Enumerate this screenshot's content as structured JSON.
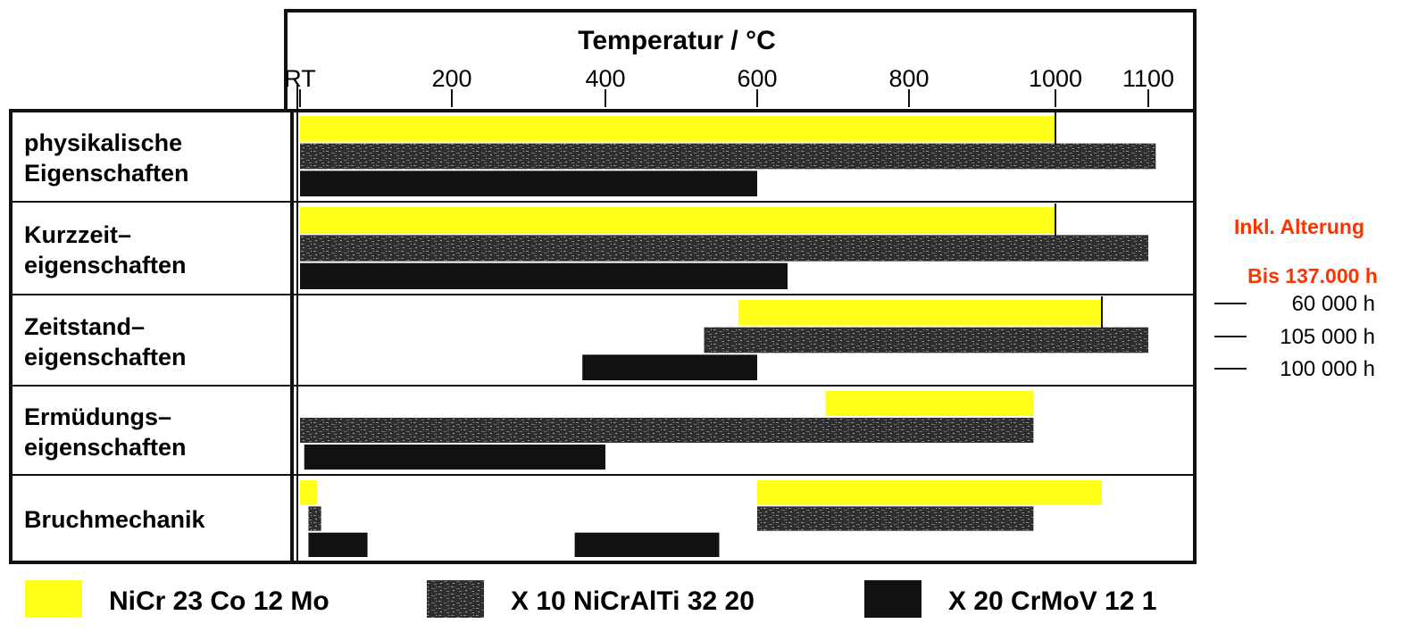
{
  "chart_data": {
    "type": "bar",
    "subtype": "range-bar",
    "xlabel": "Temperatur / °C",
    "tick_labels": [
      "RT",
      "200",
      "400",
      "600",
      "800",
      "1000",
      "1100"
    ],
    "tick_values": [
      20,
      200,
      400,
      600,
      800,
      1000,
      1100
    ],
    "xlim": [
      20,
      1160
    ],
    "categories": [
      [
        "physikalische",
        "Eigenschaften"
      ],
      [
        "Kurzzeit–",
        "eigenschaften"
      ],
      [
        "Zeitstand–",
        "eigenschaften"
      ],
      [
        "Ermüdungs–",
        "eigenschaften"
      ],
      [
        "Bruchmechanik"
      ]
    ],
    "series": [
      {
        "name": "NiCr 23 Co 12 Mo",
        "color": "#ffff1a",
        "pattern": "solid-yellow",
        "ranges": [
          [
            [
              20,
              1000
            ]
          ],
          [
            [
              20,
              1000
            ]
          ],
          [
            [
              575,
              1050
            ]
          ],
          [
            [
              690,
              970
            ]
          ],
          [
            [
              20,
              40
            ],
            [
              600,
              1050
            ]
          ]
        ]
      },
      {
        "name": "X 10 NiCrAlTi 32 20",
        "color": "#2a2a2a",
        "pattern": "speckled",
        "ranges": [
          [
            [
              20,
              1110
            ]
          ],
          [
            [
              20,
              1100
            ]
          ],
          [
            [
              530,
              1100
            ]
          ],
          [
            [
              20,
              970
            ]
          ],
          [
            [
              30,
              45
            ],
            [
              600,
              970
            ]
          ]
        ]
      },
      {
        "name": "X 20 CrMoV 12 1",
        "color": "#111111",
        "pattern": "solid-black",
        "ranges": [
          [
            [
              20,
              600
            ]
          ],
          [
            [
              20,
              640
            ]
          ],
          [
            [
              370,
              600
            ]
          ],
          [
            [
              25,
              400
            ]
          ],
          [
            [
              30,
              100
            ],
            [
              360,
              550
            ]
          ]
        ]
      }
    ],
    "annotations": {
      "red_notes": [
        "Inkl. Alterung",
        "Bis 137.000 h"
      ],
      "durations": [
        "60 000 h",
        "105 000 h",
        "100 000 h"
      ]
    },
    "grid": false,
    "legend_position": "bottom"
  }
}
